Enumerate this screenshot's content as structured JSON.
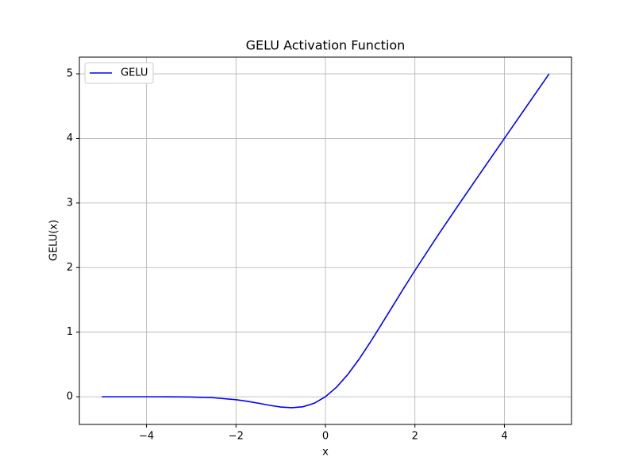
{
  "chart_data": {
    "type": "line",
    "title": "GELU Activation Function",
    "x_label": "x",
    "y_label": "GELU(x)",
    "x": [
      -5,
      -4.5,
      -4,
      -3.5,
      -3,
      -2.5,
      -2,
      -1.75,
      -1.5,
      -1.25,
      -1,
      -0.75,
      -0.5,
      -0.25,
      0,
      0.25,
      0.5,
      0.75,
      1,
      1.25,
      1.5,
      1.75,
      2,
      2.5,
      3,
      3.5,
      4,
      4.5,
      5
    ],
    "series": [
      {
        "name": "GELU",
        "color": "#0000ff",
        "values": [
          0,
          0,
          -0.0001,
          -0.0008,
          -0.004,
          -0.0155,
          -0.0455,
          -0.0701,
          -0.1002,
          -0.1321,
          -0.1587,
          -0.17,
          -0.1543,
          -0.1003,
          0,
          0.1497,
          0.3457,
          0.58,
          0.8413,
          1.1179,
          1.3998,
          1.6799,
          1.9545,
          2.4845,
          2.996,
          3.4992,
          3.9999,
          4.5,
          5
        ]
      }
    ],
    "xlim": [
      -5.5,
      5.5
    ],
    "ylim": [
      -0.4285,
      5.2585
    ],
    "xticks": [
      {
        "value": -4,
        "label": "−4"
      },
      {
        "value": -2,
        "label": "−2"
      },
      0,
      2,
      4
    ],
    "yticks": [
      0,
      1,
      2,
      3,
      4,
      5
    ],
    "grid": true,
    "legend": "upper-left"
  }
}
